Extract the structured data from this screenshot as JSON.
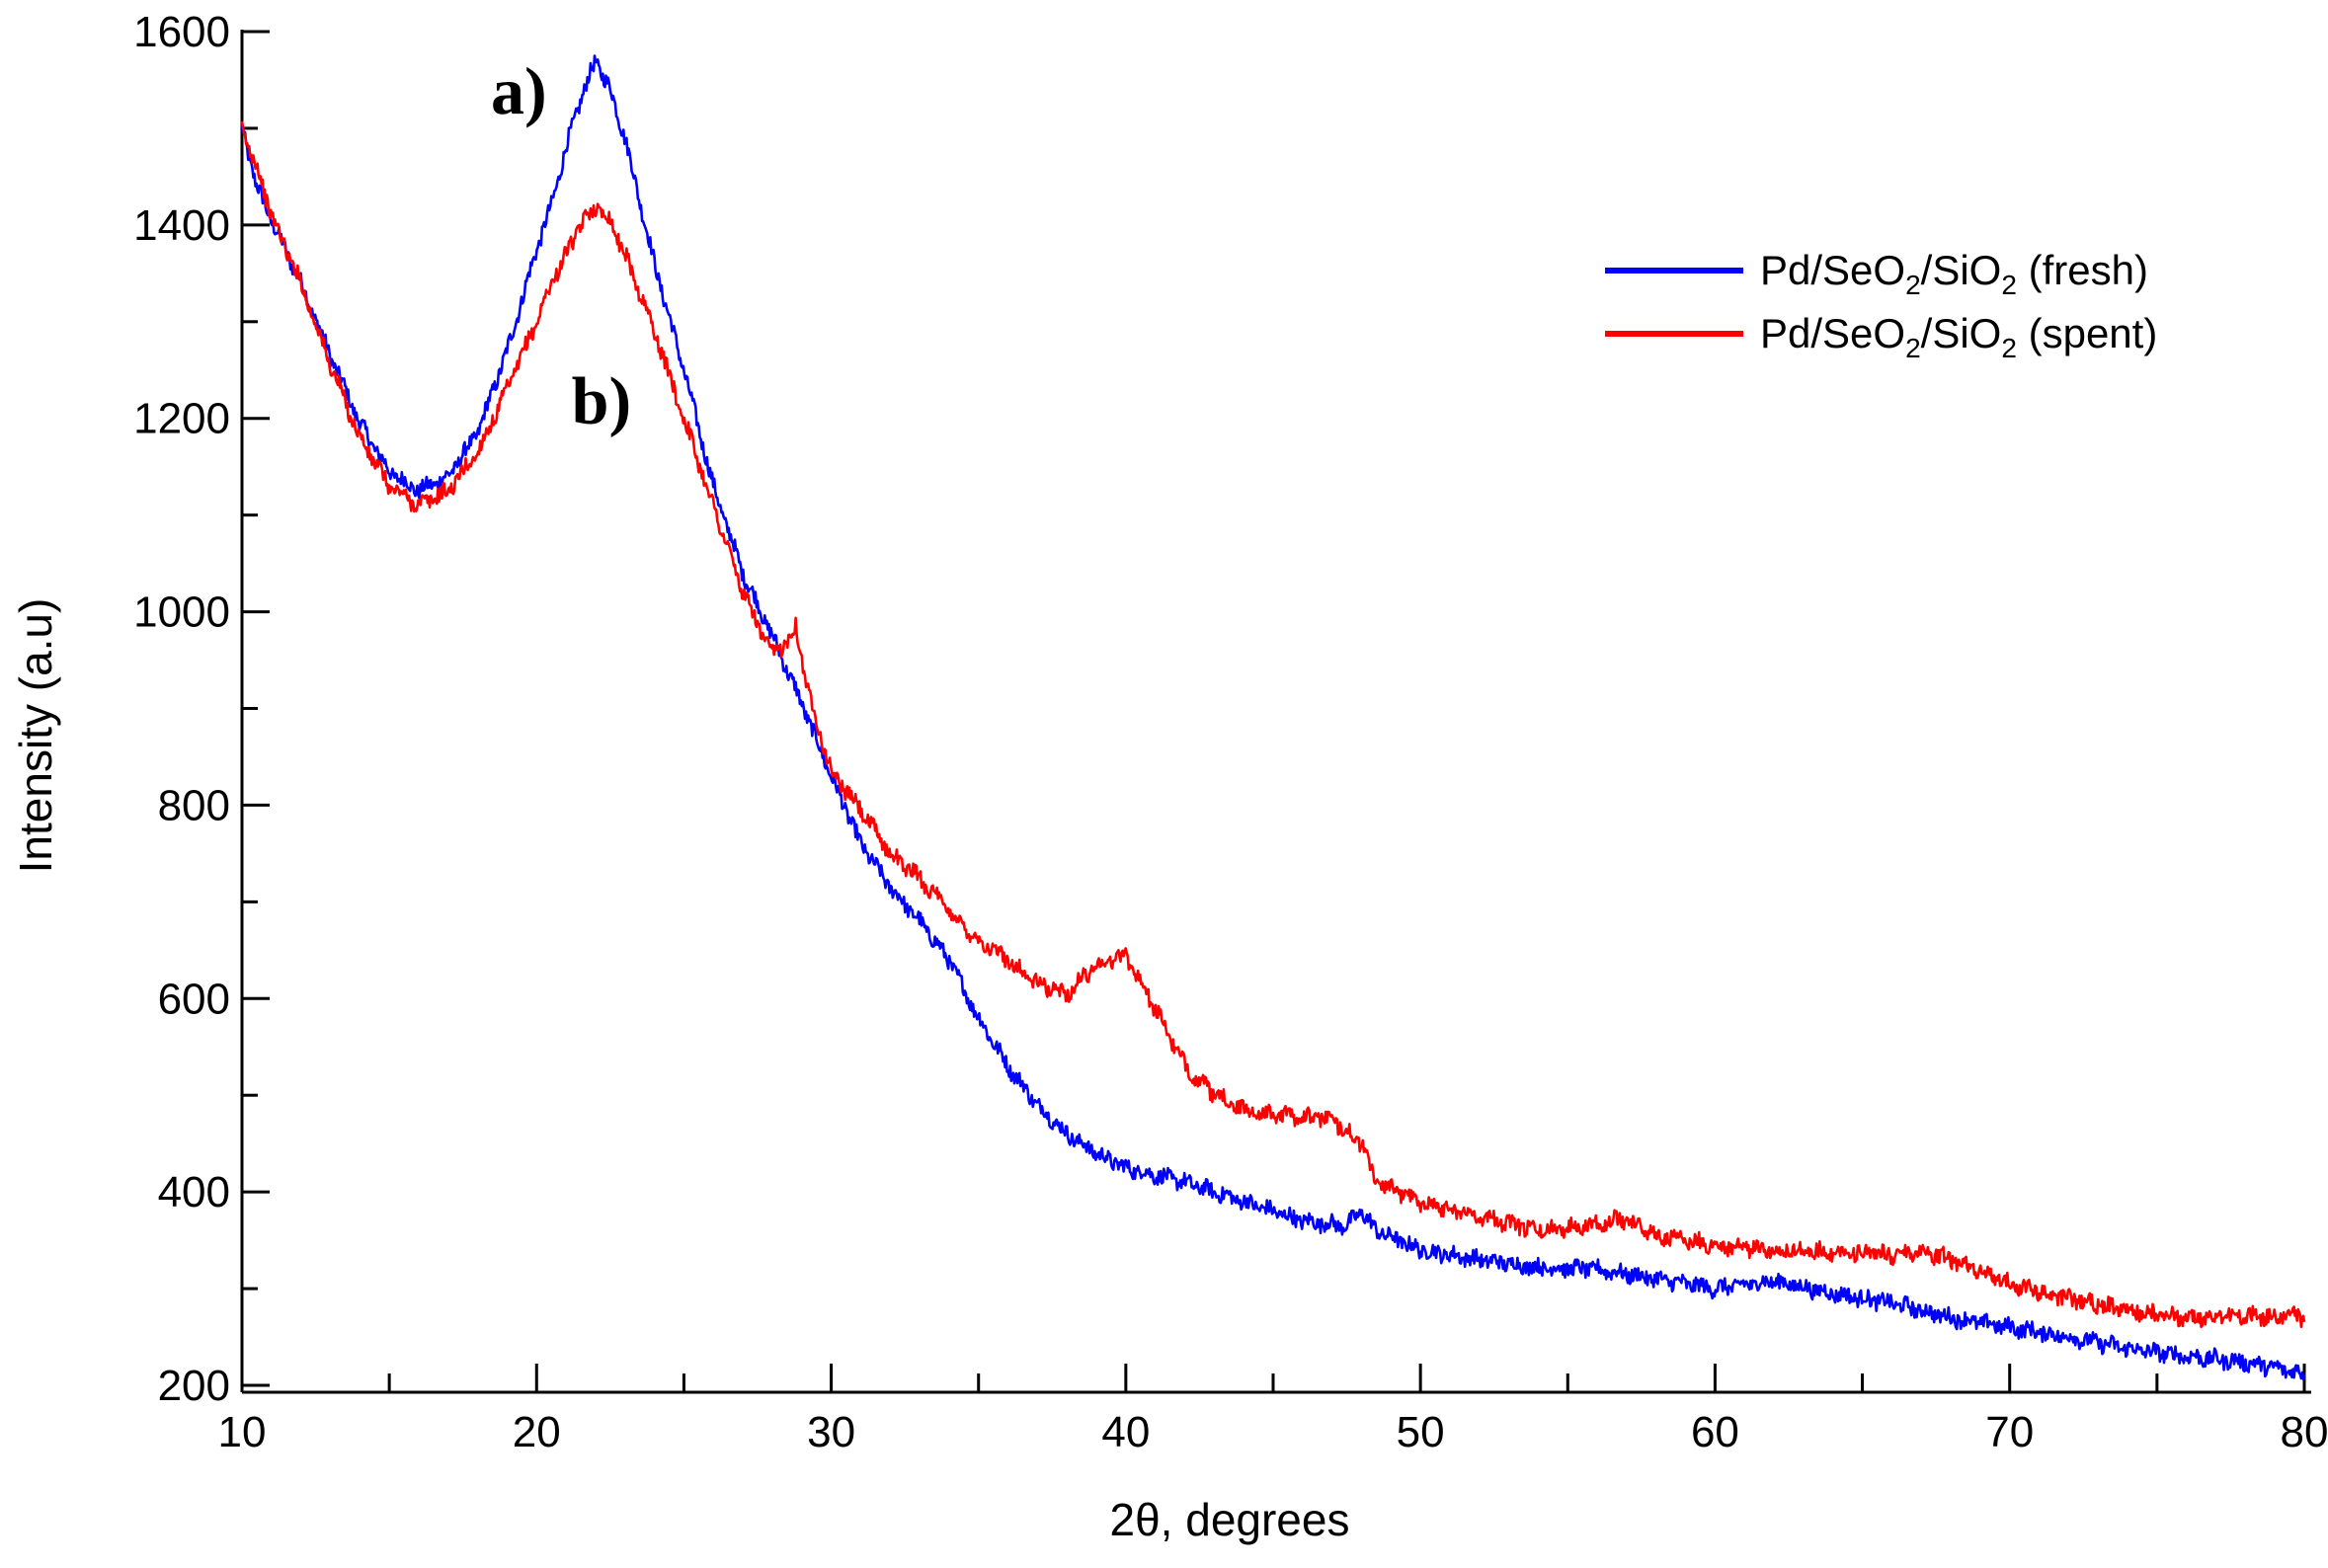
{
  "chart_data": {
    "type": "line",
    "title": "",
    "xlabel": "2θ, degrees",
    "ylabel": "Intensity (a.u)",
    "xlim": [
      10,
      80
    ],
    "ylim": [
      200,
      1600
    ],
    "x_ticks": [
      10,
      20,
      30,
      40,
      50,
      60,
      70,
      80
    ],
    "y_ticks": [
      200,
      400,
      600,
      800,
      1000,
      1200,
      1400,
      1600
    ],
    "grid": false,
    "legend_position": "top-right",
    "legend_unicode": [
      "Pd/SeO₂/SiO₂ (fresh)",
      "Pd/SeO₂/SiO₂ (spent)"
    ],
    "annotations": [
      {
        "text": "a)",
        "x": 19.4,
        "y": 1515,
        "series": "fresh"
      },
      {
        "text": "b)",
        "x": 22.2,
        "y": 1195,
        "series": "spent"
      }
    ],
    "series": [
      {
        "name": "Pd/SeO2/SiO2 (fresh)",
        "label_parts": {
          "a": "Pd/SeO",
          "b": "2",
          "c": "/SiO",
          "d": "2",
          "e": " (fresh)"
        },
        "color": "#0000ff",
        "points": [
          [
            10,
            1500
          ],
          [
            10.5,
            1440
          ],
          [
            11,
            1405
          ],
          [
            12,
            1340
          ],
          [
            13,
            1265
          ],
          [
            14,
            1195
          ],
          [
            15,
            1145
          ],
          [
            16,
            1125
          ],
          [
            17,
            1140
          ],
          [
            18,
            1185
          ],
          [
            19,
            1270
          ],
          [
            20,
            1375
          ],
          [
            20.5,
            1420
          ],
          [
            21,
            1480
          ],
          [
            21.5,
            1530
          ],
          [
            22,
            1570
          ],
          [
            22.5,
            1540
          ],
          [
            23,
            1490
          ],
          [
            24,
            1360
          ],
          [
            25,
            1250
          ],
          [
            26,
            1130
          ],
          [
            27,
            1040
          ],
          [
            28,
            975
          ],
          [
            29,
            905
          ],
          [
            30,
            830
          ],
          [
            31,
            760
          ],
          [
            32,
            715
          ],
          [
            33,
            680
          ],
          [
            34,
            640
          ],
          [
            35,
            580
          ],
          [
            36,
            530
          ],
          [
            37,
            490
          ],
          [
            38,
            460
          ],
          [
            39,
            440
          ],
          [
            40,
            425
          ],
          [
            42,
            410
          ],
          [
            44,
            390
          ],
          [
            46,
            370
          ],
          [
            47.5,
            365
          ],
          [
            48,
            380
          ],
          [
            48.5,
            360
          ],
          [
            50,
            340
          ],
          [
            52,
            330
          ],
          [
            54,
            322
          ],
          [
            56,
            320
          ],
          [
            58,
            310
          ],
          [
            60,
            300
          ],
          [
            62,
            308
          ],
          [
            64,
            295
          ],
          [
            66,
            285
          ],
          [
            68,
            270
          ],
          [
            70,
            260
          ],
          [
            72,
            250
          ],
          [
            74,
            238
          ],
          [
            76,
            230
          ],
          [
            78,
            224
          ],
          [
            80,
            212
          ]
        ]
      },
      {
        "name": "Pd/SeO2/SiO2 (spent)",
        "label_parts": {
          "a": "Pd/SeO",
          "b": "2",
          "c": "/SiO",
          "d": "2",
          "e": " (spent)"
        },
        "color": "#ff0000",
        "points": [
          [
            10,
            1500
          ],
          [
            10.5,
            1460
          ],
          [
            11,
            1410
          ],
          [
            12,
            1340
          ],
          [
            13,
            1255
          ],
          [
            14,
            1180
          ],
          [
            15,
            1130
          ],
          [
            16,
            1110
          ],
          [
            17,
            1125
          ],
          [
            18,
            1165
          ],
          [
            19,
            1230
          ],
          [
            20,
            1300
          ],
          [
            20.5,
            1340
          ],
          [
            21,
            1370
          ],
          [
            21.5,
            1400
          ],
          [
            22,
            1420
          ],
          [
            22.5,
            1405
          ],
          [
            23,
            1370
          ],
          [
            24,
            1290
          ],
          [
            25,
            1200
          ],
          [
            26,
            1110
          ],
          [
            27,
            1020
          ],
          [
            28,
            955
          ],
          [
            28.5,
            970
          ],
          [
            28.8,
            985
          ],
          [
            29.2,
            920
          ],
          [
            30,
            835
          ],
          [
            31,
            795
          ],
          [
            32,
            750
          ],
          [
            33,
            725
          ],
          [
            34,
            690
          ],
          [
            35,
            660
          ],
          [
            36,
            640
          ],
          [
            37,
            615
          ],
          [
            38,
            605
          ],
          [
            39,
            635
          ],
          [
            40,
            645
          ],
          [
            41,
            590
          ],
          [
            42,
            530
          ],
          [
            43,
            500
          ],
          [
            44,
            485
          ],
          [
            45,
            480
          ],
          [
            46,
            478
          ],
          [
            47,
            475
          ],
          [
            48,
            450
          ],
          [
            48.5,
            410
          ],
          [
            50,
            390
          ],
          [
            52,
            375
          ],
          [
            54,
            360
          ],
          [
            56,
            368
          ],
          [
            57,
            372
          ],
          [
            58,
            355
          ],
          [
            60,
            345
          ],
          [
            62,
            340
          ],
          [
            64,
            338
          ],
          [
            66,
            335
          ],
          [
            67,
            340
          ],
          [
            68,
            330
          ],
          [
            70,
            305
          ],
          [
            72,
            290
          ],
          [
            74,
            278
          ],
          [
            76,
            270
          ],
          [
            78,
            272
          ],
          [
            80,
            270
          ]
        ]
      }
    ]
  }
}
